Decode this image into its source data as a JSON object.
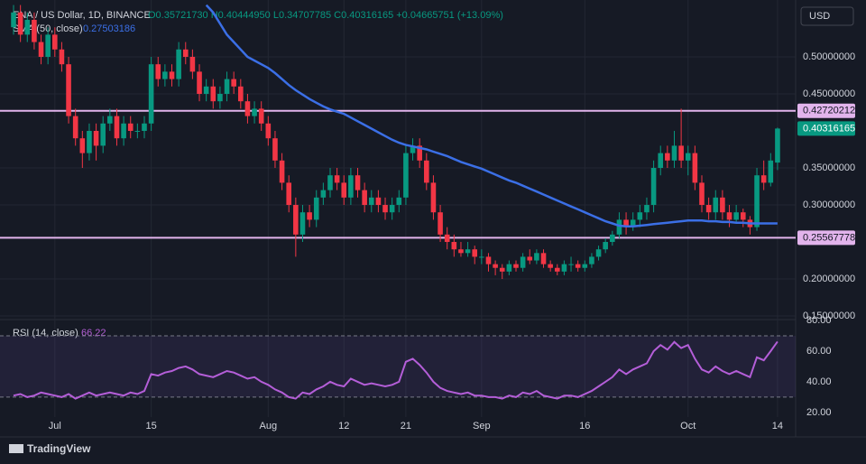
{
  "chart_data": {
    "type": "candlestick",
    "title": "ENA / US Dollar, 1D, BINANCE",
    "ohlc": "O0.35721730 H0.40444950 L0.34707785 C0.40316165 +0.04665751 (+13.09%)",
    "currency": "USD",
    "brand": "TradingView",
    "up_color": "#089981",
    "down_color": "#f23645",
    "candles": [
      [
        0.54,
        0.57,
        0.53,
        0.56
      ],
      [
        0.56,
        0.57,
        0.52,
        0.53
      ],
      [
        0.53,
        0.56,
        0.52,
        0.55
      ],
      [
        0.55,
        0.56,
        0.51,
        0.52
      ],
      [
        0.52,
        0.53,
        0.49,
        0.5
      ],
      [
        0.5,
        0.54,
        0.49,
        0.53
      ],
      [
        0.53,
        0.54,
        0.5,
        0.51
      ],
      [
        0.51,
        0.52,
        0.48,
        0.49
      ],
      [
        0.49,
        0.5,
        0.41,
        0.42
      ],
      [
        0.42,
        0.43,
        0.38,
        0.39
      ],
      [
        0.39,
        0.4,
        0.35,
        0.37
      ],
      [
        0.37,
        0.41,
        0.36,
        0.4
      ],
      [
        0.4,
        0.41,
        0.36,
        0.38
      ],
      [
        0.38,
        0.42,
        0.37,
        0.41
      ],
      [
        0.41,
        0.43,
        0.4,
        0.42
      ],
      [
        0.42,
        0.43,
        0.38,
        0.39
      ],
      [
        0.39,
        0.42,
        0.38,
        0.41
      ],
      [
        0.41,
        0.42,
        0.39,
        0.4
      ],
      [
        0.4,
        0.41,
        0.39,
        0.4
      ],
      [
        0.4,
        0.42,
        0.39,
        0.41
      ],
      [
        0.41,
        0.5,
        0.4,
        0.49
      ],
      [
        0.49,
        0.5,
        0.46,
        0.47
      ],
      [
        0.47,
        0.49,
        0.46,
        0.48
      ],
      [
        0.48,
        0.49,
        0.46,
        0.47
      ],
      [
        0.47,
        0.52,
        0.46,
        0.51
      ],
      [
        0.51,
        0.52,
        0.49,
        0.5
      ],
      [
        0.5,
        0.51,
        0.47,
        0.48
      ],
      [
        0.48,
        0.49,
        0.44,
        0.45
      ],
      [
        0.45,
        0.47,
        0.44,
        0.46
      ],
      [
        0.46,
        0.47,
        0.43,
        0.44
      ],
      [
        0.44,
        0.46,
        0.43,
        0.45
      ],
      [
        0.45,
        0.48,
        0.44,
        0.47
      ],
      [
        0.47,
        0.48,
        0.45,
        0.46
      ],
      [
        0.46,
        0.47,
        0.43,
        0.44
      ],
      [
        0.44,
        0.45,
        0.41,
        0.42
      ],
      [
        0.42,
        0.44,
        0.41,
        0.43
      ],
      [
        0.43,
        0.44,
        0.4,
        0.41
      ],
      [
        0.41,
        0.42,
        0.38,
        0.39
      ],
      [
        0.39,
        0.4,
        0.35,
        0.36
      ],
      [
        0.36,
        0.37,
        0.32,
        0.33
      ],
      [
        0.33,
        0.34,
        0.29,
        0.3
      ],
      [
        0.3,
        0.31,
        0.23,
        0.26
      ],
      [
        0.26,
        0.3,
        0.25,
        0.29
      ],
      [
        0.29,
        0.3,
        0.27,
        0.28
      ],
      [
        0.28,
        0.32,
        0.27,
        0.31
      ],
      [
        0.31,
        0.33,
        0.3,
        0.32
      ],
      [
        0.32,
        0.35,
        0.31,
        0.34
      ],
      [
        0.34,
        0.35,
        0.32,
        0.33
      ],
      [
        0.33,
        0.34,
        0.3,
        0.31
      ],
      [
        0.31,
        0.35,
        0.3,
        0.34
      ],
      [
        0.34,
        0.35,
        0.31,
        0.32
      ],
      [
        0.32,
        0.33,
        0.29,
        0.3
      ],
      [
        0.3,
        0.32,
        0.29,
        0.31
      ],
      [
        0.31,
        0.32,
        0.29,
        0.3
      ],
      [
        0.3,
        0.31,
        0.28,
        0.29
      ],
      [
        0.29,
        0.31,
        0.28,
        0.3
      ],
      [
        0.3,
        0.32,
        0.29,
        0.31
      ],
      [
        0.31,
        0.38,
        0.3,
        0.37
      ],
      [
        0.37,
        0.39,
        0.36,
        0.38
      ],
      [
        0.38,
        0.39,
        0.35,
        0.36
      ],
      [
        0.36,
        0.37,
        0.32,
        0.33
      ],
      [
        0.33,
        0.34,
        0.28,
        0.29
      ],
      [
        0.29,
        0.3,
        0.25,
        0.26
      ],
      [
        0.26,
        0.27,
        0.24,
        0.25
      ],
      [
        0.25,
        0.26,
        0.23,
        0.24
      ],
      [
        0.24,
        0.25,
        0.23,
        0.235
      ],
      [
        0.235,
        0.25,
        0.23,
        0.24
      ],
      [
        0.24,
        0.245,
        0.22,
        0.23
      ],
      [
        0.23,
        0.24,
        0.22,
        0.23
      ],
      [
        0.23,
        0.235,
        0.21,
        0.22
      ],
      [
        0.22,
        0.225,
        0.205,
        0.215
      ],
      [
        0.215,
        0.22,
        0.2,
        0.21
      ],
      [
        0.21,
        0.225,
        0.205,
        0.22
      ],
      [
        0.22,
        0.225,
        0.21,
        0.215
      ],
      [
        0.215,
        0.235,
        0.21,
        0.23
      ],
      [
        0.23,
        0.24,
        0.22,
        0.225
      ],
      [
        0.225,
        0.24,
        0.22,
        0.235
      ],
      [
        0.235,
        0.24,
        0.215,
        0.22
      ],
      [
        0.22,
        0.225,
        0.21,
        0.215
      ],
      [
        0.215,
        0.22,
        0.205,
        0.21
      ],
      [
        0.21,
        0.225,
        0.205,
        0.22
      ],
      [
        0.22,
        0.23,
        0.21,
        0.22
      ],
      [
        0.22,
        0.225,
        0.21,
        0.215
      ],
      [
        0.215,
        0.225,
        0.21,
        0.22
      ],
      [
        0.22,
        0.235,
        0.215,
        0.23
      ],
      [
        0.23,
        0.245,
        0.225,
        0.24
      ],
      [
        0.24,
        0.255,
        0.235,
        0.25
      ],
      [
        0.25,
        0.265,
        0.245,
        0.26
      ],
      [
        0.26,
        0.29,
        0.255,
        0.28
      ],
      [
        0.28,
        0.29,
        0.26,
        0.27
      ],
      [
        0.27,
        0.29,
        0.265,
        0.28
      ],
      [
        0.28,
        0.3,
        0.27,
        0.29
      ],
      [
        0.29,
        0.31,
        0.28,
        0.3
      ],
      [
        0.3,
        0.36,
        0.29,
        0.35
      ],
      [
        0.35,
        0.38,
        0.34,
        0.37
      ],
      [
        0.37,
        0.38,
        0.35,
        0.36
      ],
      [
        0.36,
        0.4,
        0.35,
        0.38
      ],
      [
        0.38,
        0.43,
        0.35,
        0.36
      ],
      [
        0.36,
        0.38,
        0.34,
        0.37
      ],
      [
        0.37,
        0.38,
        0.32,
        0.33
      ],
      [
        0.33,
        0.34,
        0.29,
        0.3
      ],
      [
        0.3,
        0.31,
        0.28,
        0.29
      ],
      [
        0.29,
        0.32,
        0.28,
        0.31
      ],
      [
        0.31,
        0.32,
        0.28,
        0.29
      ],
      [
        0.29,
        0.3,
        0.27,
        0.28
      ],
      [
        0.28,
        0.3,
        0.275,
        0.29
      ],
      [
        0.29,
        0.295,
        0.27,
        0.28
      ],
      [
        0.28,
        0.285,
        0.26,
        0.27
      ],
      [
        0.27,
        0.35,
        0.265,
        0.34
      ],
      [
        0.34,
        0.36,
        0.32,
        0.33
      ],
      [
        0.33,
        0.37,
        0.325,
        0.36
      ],
      [
        0.3572173,
        0.4044495,
        0.34707785,
        0.40316165
      ]
    ],
    "series": [
      {
        "name": "SMA (50, close)",
        "color": "#3b6fe6",
        "values": [
          null,
          null,
          null,
          null,
          null,
          null,
          null,
          null,
          null,
          null,
          null,
          null,
          null,
          null,
          null,
          null,
          null,
          null,
          null,
          null,
          null,
          null,
          null,
          null,
          null,
          null,
          null,
          null,
          0.57,
          0.56,
          0.545,
          0.53,
          0.52,
          0.51,
          0.5,
          0.495,
          0.49,
          0.485,
          0.478,
          0.47,
          0.462,
          0.455,
          0.449,
          0.443,
          0.438,
          0.433,
          0.429,
          0.426,
          0.423,
          0.418,
          0.413,
          0.408,
          0.403,
          0.398,
          0.393,
          0.388,
          0.384,
          0.381,
          0.379,
          0.377,
          0.375,
          0.372,
          0.369,
          0.366,
          0.362,
          0.358,
          0.355,
          0.352,
          0.349,
          0.345,
          0.341,
          0.337,
          0.333,
          0.33,
          0.326,
          0.322,
          0.318,
          0.314,
          0.31,
          0.306,
          0.302,
          0.298,
          0.294,
          0.29,
          0.286,
          0.282,
          0.278,
          0.275,
          0.272,
          0.271,
          0.271,
          0.272,
          0.273,
          0.274,
          0.275,
          0.276,
          0.277,
          0.278,
          0.279,
          0.279,
          0.279,
          0.278,
          0.278,
          0.277,
          0.277,
          0.276,
          0.276,
          0.275,
          0.275,
          0.275,
          0.275,
          0.27503186
        ]
      }
    ],
    "levels": [
      0.42720212,
      0.25567778
    ],
    "level_color": "#e2b4ec",
    "xlim": [
      -0.92,
      113.63
    ],
    "xticks": [
      {
        "value": 6,
        "label": "Jul"
      },
      {
        "value": 20,
        "label": "15"
      },
      {
        "value": 37,
        "label": "Aug"
      },
      {
        "value": 48,
        "label": "12"
      },
      {
        "value": 57,
        "label": "21"
      },
      {
        "value": 68,
        "label": "Sep"
      },
      {
        "value": 83,
        "label": "16"
      },
      {
        "value": 98,
        "label": "Oct"
      },
      {
        "value": 111,
        "label": "14"
      }
    ],
    "ylim": [
      0.1476,
      0.5768
    ],
    "yticks": [
      {
        "value": 0.5,
        "label": "0.50000000"
      },
      {
        "value": 0.45,
        "label": "0.45000000"
      },
      {
        "value": 0.35,
        "label": "0.35000000"
      },
      {
        "value": 0.3,
        "label": "0.30000000"
      },
      {
        "value": 0.2,
        "label": "0.20000000"
      },
      {
        "value": 0.15,
        "label": "0.15000000"
      }
    ],
    "rsi": {
      "name": "RSI (14, close)",
      "color": "#b45ed8",
      "band": [
        30,
        70
      ],
      "ylim": [
        17,
        79.4
      ],
      "yticks": [
        {
          "value": 80,
          "label": "80.00"
        },
        {
          "value": 60,
          "label": "60.00"
        },
        {
          "value": 40,
          "label": "40.00"
        },
        {
          "value": 20,
          "label": "20.00"
        }
      ],
      "values": [
        31,
        32,
        30,
        31,
        33,
        32,
        31,
        30,
        32,
        29,
        31,
        33,
        31,
        32,
        33,
        32,
        31,
        33,
        32,
        34,
        45,
        44,
        46,
        47,
        49,
        50,
        48,
        45,
        44,
        43,
        45,
        47,
        46,
        44,
        42,
        43,
        40,
        38,
        35,
        33,
        30,
        29,
        33,
        32,
        35,
        37,
        40,
        38,
        37,
        42,
        40,
        38,
        39,
        38,
        37,
        38,
        40,
        53,
        55,
        51,
        46,
        40,
        36,
        34,
        33,
        32,
        33,
        31,
        31,
        30,
        30,
        29,
        31,
        30,
        33,
        32,
        34,
        31,
        30,
        29,
        31,
        31,
        30,
        32,
        34,
        37,
        40,
        43,
        48,
        45,
        48,
        50,
        52,
        60,
        64,
        61,
        66,
        62,
        64,
        55,
        48,
        46,
        50,
        47,
        45,
        47,
        45,
        43,
        56,
        54,
        60,
        66.22
      ]
    }
  }
}
